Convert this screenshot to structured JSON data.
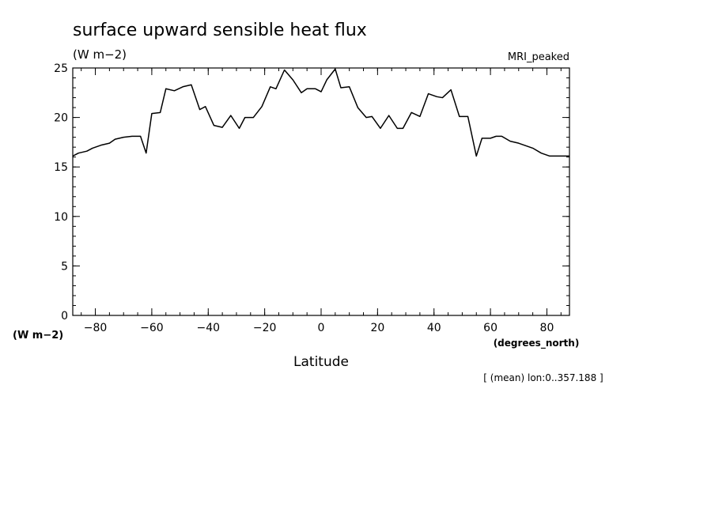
{
  "chart_data": {
    "type": "line",
    "title": "surface upward sensible heat flux",
    "subtitle_units": "(W m−2)",
    "model_label": "MRI_peaked",
    "ylabel_units": "(W m−2)",
    "xlabel": "Latitude",
    "xunits": "(degrees_north)",
    "footnote": "[ (mean) lon:0..357.188 ]",
    "xlim": [
      -88,
      88
    ],
    "ylim": [
      0,
      25
    ],
    "xticks": [
      -80,
      -60,
      -40,
      -20,
      0,
      20,
      40,
      60,
      80
    ],
    "yticks": [
      0,
      5,
      10,
      15,
      20,
      25
    ],
    "grid": false,
    "color": "#000000",
    "series": [
      {
        "x": [
          -88,
          -86,
          -83,
          -81,
          -78,
          -75,
          -73,
          -70,
          -67,
          -64,
          -62,
          -60,
          -57,
          -55,
          -52,
          -49,
          -46,
          -43,
          -41,
          -38,
          -35,
          -32,
          -29,
          -27,
          -24,
          -21,
          -18,
          -16,
          -13,
          -10,
          -7,
          -5,
          -2,
          0,
          2,
          5,
          7,
          10,
          13,
          16,
          18,
          21,
          24,
          27,
          29,
          32,
          35,
          38,
          41,
          43,
          46,
          49,
          52,
          55,
          57,
          60,
          62,
          64,
          67,
          70,
          73,
          75,
          78,
          81,
          83,
          86,
          88
        ],
        "y": [
          16.1,
          16.4,
          16.6,
          16.9,
          17.2,
          17.4,
          17.8,
          18.0,
          18.1,
          18.1,
          16.4,
          20.4,
          20.5,
          22.9,
          22.7,
          23.1,
          23.3,
          20.8,
          21.1,
          19.2,
          19.0,
          20.2,
          18.9,
          20.0,
          20.0,
          21.1,
          23.1,
          22.9,
          24.8,
          23.8,
          22.5,
          22.9,
          22.9,
          22.6,
          23.8,
          24.9,
          23.0,
          23.1,
          21.0,
          20.0,
          20.1,
          18.9,
          20.2,
          18.9,
          18.9,
          20.5,
          20.1,
          22.4,
          22.1,
          22.0,
          22.8,
          20.1,
          20.1,
          16.1,
          17.9,
          17.9,
          18.1,
          18.1,
          17.6,
          17.4,
          17.1,
          16.9,
          16.4,
          16.1,
          16.1,
          16.1,
          16.1
        ]
      }
    ]
  }
}
